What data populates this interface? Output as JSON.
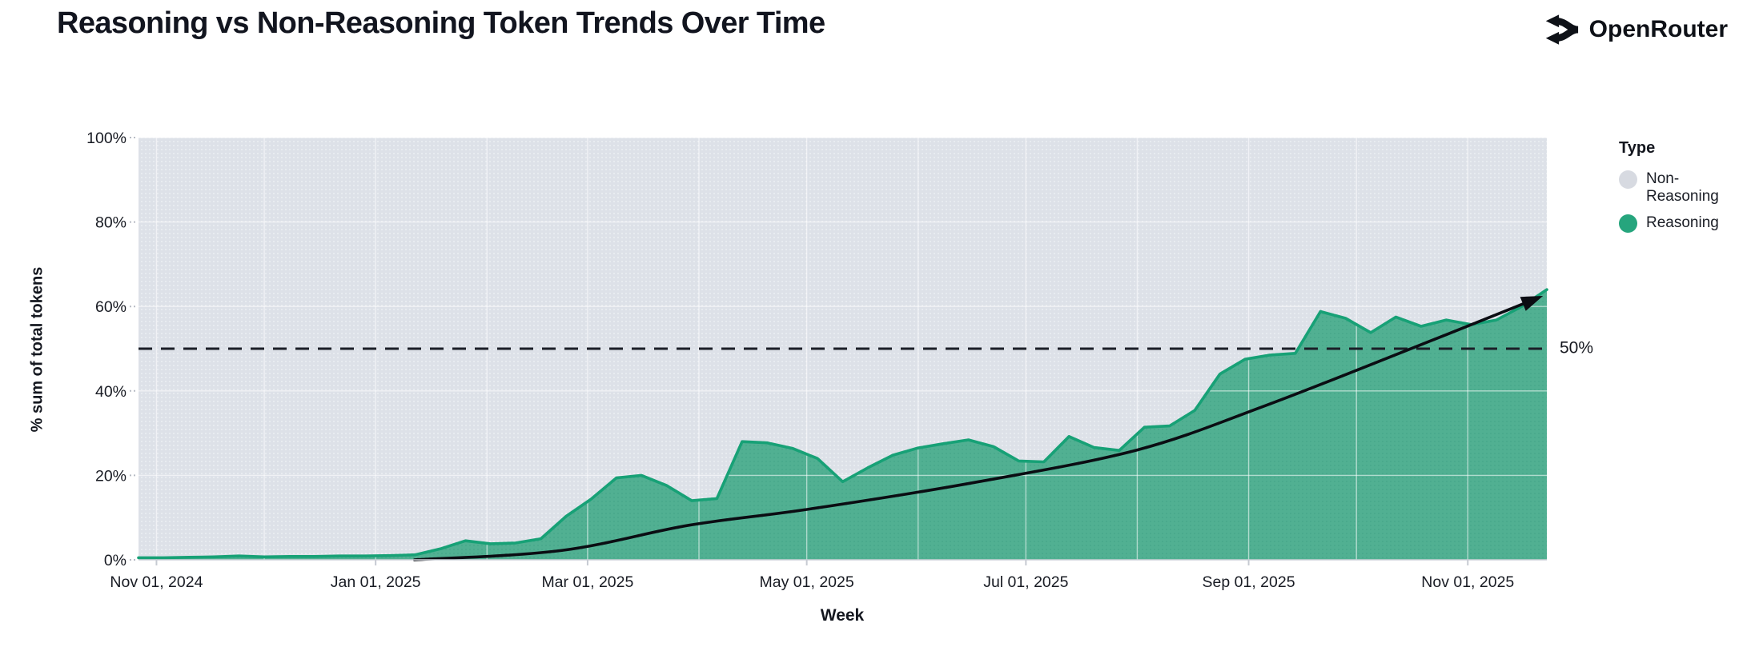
{
  "header": {
    "title": "Reasoning vs Non-Reasoning Token Trends Over Time",
    "brand": "OpenRouter"
  },
  "legend": {
    "title": "Type",
    "items": [
      {
        "label": "Non-Reasoning",
        "color": "#d7dae1"
      },
      {
        "label": "Reasoning",
        "color": "#26a57d"
      }
    ]
  },
  "chart_data": {
    "type": "area",
    "mode": "100%-stacked",
    "title": "Reasoning vs Non-Reasoning Token Trends Over Time",
    "xlabel": "Week",
    "ylabel": "% sum of total tokens",
    "ylim": [
      0,
      100
    ],
    "grid": true,
    "legend_position": "right",
    "x_start_week": "2024-10-27",
    "x_step_days": 7,
    "series": [
      {
        "name": "Reasoning",
        "fill": "#51b092",
        "stroke": "#17a176",
        "values": [
          0.5,
          0.5,
          0.6,
          0.7,
          0.9,
          0.7,
          0.8,
          0.8,
          0.9,
          0.9,
          1.0,
          1.2,
          2.6,
          4.5,
          3.8,
          4.0,
          5.0,
          10.3,
          14.4,
          19.4,
          20.0,
          17.6,
          14.0,
          14.5,
          28.0,
          27.7,
          26.4,
          24.0,
          18.5,
          21.8,
          24.8,
          26.5,
          27.5,
          28.4,
          26.8,
          23.4,
          23.2,
          29.2,
          26.6,
          25.9,
          31.4,
          31.7,
          35.4,
          44.0,
          47.5,
          48.5,
          48.9,
          58.8,
          57.2,
          53.8,
          57.5,
          55.3,
          56.8,
          55.7,
          56.8,
          60.0,
          64.0
        ]
      },
      {
        "name": "Non-Reasoning",
        "fill": "#dde1e8",
        "derived": "100 minus Reasoning at every week (stacked to 100%)"
      }
    ],
    "y_ticks": [
      {
        "value": 0,
        "label": "0%"
      },
      {
        "value": 20,
        "label": "20%"
      },
      {
        "value": 40,
        "label": "40%"
      },
      {
        "value": 60,
        "label": "60%"
      },
      {
        "value": 80,
        "label": "80%"
      },
      {
        "value": 100,
        "label": "100%"
      }
    ],
    "x_ticks": [
      {
        "date": "2024-11-01",
        "label": "Nov 01, 2024"
      },
      {
        "date": "2025-01-01",
        "label": "Jan 01, 2025"
      },
      {
        "date": "2025-03-01",
        "label": "Mar 01, 2025"
      },
      {
        "date": "2025-05-01",
        "label": "May 01, 2025"
      },
      {
        "date": "2025-07-01",
        "label": "Jul 01, 2025"
      },
      {
        "date": "2025-09-01",
        "label": "Sep 01, 2025"
      },
      {
        "date": "2025-11-01",
        "label": "Nov 01, 2025"
      }
    ],
    "annotation": {
      "type": "dashed-horizontal-line",
      "value": 50,
      "label": "50%"
    },
    "trend_arrow": {
      "description": "black curved arrow from 0% in mid-Jan 2025 rising to ~62% in late Nov 2025",
      "color": "#0b0d13",
      "points_fraction_value": [
        [
          0.196,
          0
        ],
        [
          0.3,
          2.2
        ],
        [
          0.391,
          8.2
        ],
        [
          0.476,
          12.0
        ],
        [
          0.595,
          18.4
        ],
        [
          0.709,
          26.0
        ],
        [
          0.8,
          36.5
        ],
        [
          0.905,
          50.2
        ],
        [
          0.992,
          61.8
        ]
      ]
    },
    "colors": {
      "plot_background": "#dde1e8",
      "gridline": "rgba(255,255,255,0.55)",
      "axis_line": "#ccd0d8",
      "text": "#181b23"
    }
  }
}
